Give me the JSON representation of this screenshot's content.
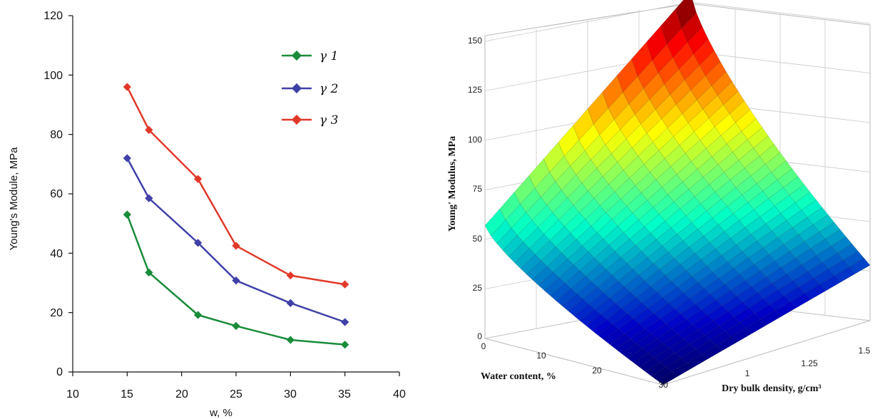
{
  "chart_data": [
    {
      "type": "line",
      "xlabel": "w, %",
      "ylabel": "Young's Module, MPa",
      "xlim": [
        10,
        40
      ],
      "ylim": [
        0,
        120
      ],
      "x_ticks": [
        "10",
        "15",
        "20",
        "25",
        "30",
        "35",
        "40"
      ],
      "y_ticks": [
        "0",
        "20",
        "40",
        "60",
        "80",
        "100",
        "120"
      ],
      "legend_position": "top-right",
      "series": [
        {
          "name": "γ 1",
          "color": "#1a8c3a",
          "x": [
            15,
            17,
            21.5,
            25,
            30,
            35
          ],
          "y": [
            53,
            33.5,
            19.2,
            15.5,
            10.8,
            9.2
          ]
        },
        {
          "name": "γ 2",
          "color": "#4040a8",
          "x": [
            15,
            17,
            21.5,
            25,
            30,
            35
          ],
          "y": [
            72,
            58.5,
            43.5,
            30.8,
            23.2,
            16.8
          ]
        },
        {
          "name": "γ 3",
          "color": "#e0392a",
          "x": [
            15,
            17,
            21.5,
            25,
            30,
            35
          ],
          "y": [
            96,
            81.5,
            65,
            42.5,
            32.5,
            29.5
          ]
        }
      ]
    },
    {
      "type": "surface",
      "xlabel": "Water content, %",
      "ylabel": "Dry bulk density, g/cm³",
      "zlabel": "Young' Modulus, MPa",
      "x_ticks": [
        "0",
        "10",
        "20",
        "30"
      ],
      "y_ticks": [
        "1",
        "1.25",
        "1.5"
      ],
      "z_ticks": [
        "0",
        "25",
        "50",
        "75",
        "100",
        "125",
        "150"
      ],
      "zlim": [
        0,
        150
      ],
      "colormap": "jet",
      "corner_values": [
        {
          "water_content": 0,
          "dry_bulk_density": 1.55,
          "young_modulus": 155
        },
        {
          "water_content": 0,
          "dry_bulk_density": 0.9,
          "young_modulus": 57
        },
        {
          "water_content": 33,
          "dry_bulk_density": 1.55,
          "young_modulus": 28
        },
        {
          "water_content": 33,
          "dry_bulk_density": 0.9,
          "young_modulus": 0
        }
      ]
    }
  ]
}
